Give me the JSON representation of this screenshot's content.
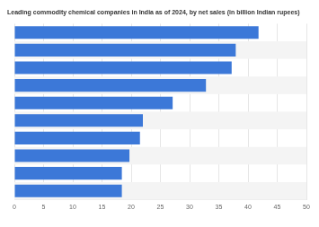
{
  "chart_data": {
    "type": "bar",
    "orientation": "horizontal",
    "title": "Leading commodity chemical companies in India as of 2024, by net sales (in billion Indian rupees)",
    "categories": [
      null,
      null,
      null,
      null,
      null,
      null,
      null,
      null,
      null,
      null
    ],
    "values": [
      41.8,
      37.9,
      37.2,
      32.8,
      27.1,
      22.0,
      21.5,
      19.7,
      18.4,
      18.4
    ],
    "color": "#3c78d8",
    "xlim": [
      0,
      50
    ],
    "xticks": [
      0,
      5,
      10,
      15,
      20,
      25,
      30,
      35,
      40,
      45,
      50
    ],
    "grid": true,
    "tick_labels": "x"
  }
}
